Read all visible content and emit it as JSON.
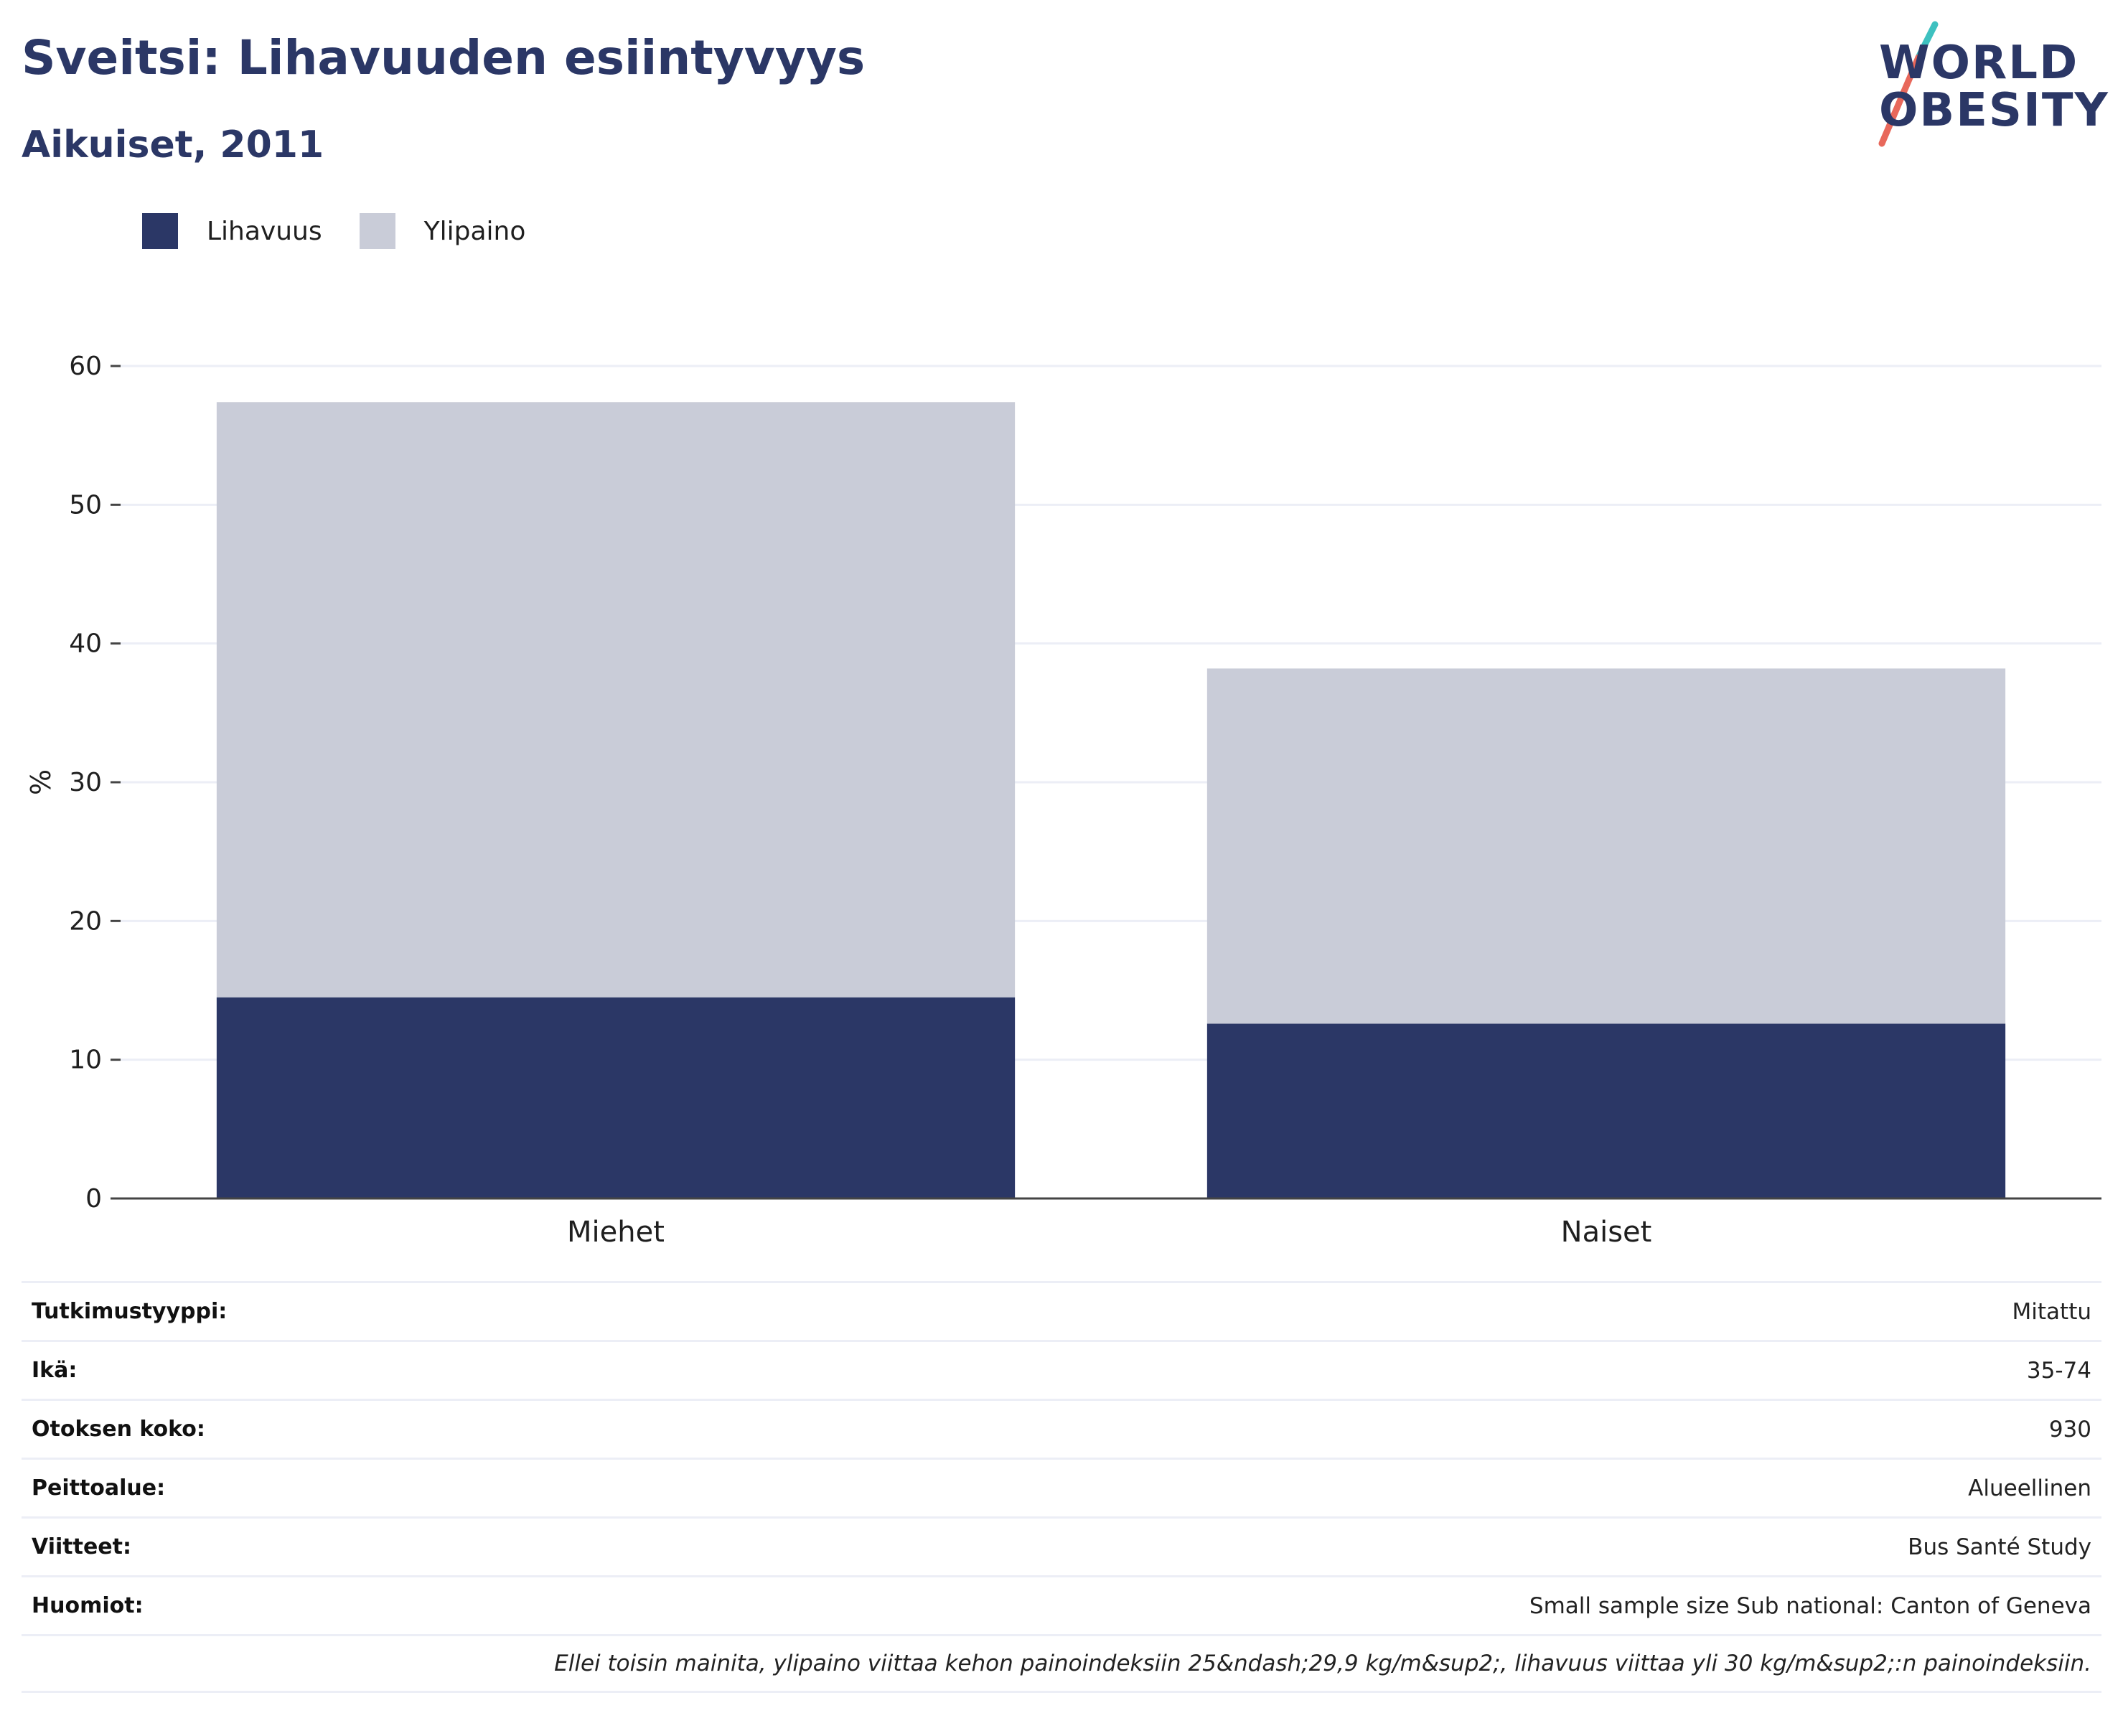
{
  "header": {
    "title": "Sveitsi: Lihavuuden esiintyvyys",
    "subtitle": "Aikuiset, 2011"
  },
  "logo": {
    "line1": "WORLD",
    "line2": "OBESITY",
    "colors": {
      "text": "#2b3766",
      "slash_top": "#3ec1c0",
      "slash_bottom": "#e8685b"
    }
  },
  "legend": [
    {
      "name": "Lihavuus",
      "color": "#2b3766"
    },
    {
      "name": "Ylipaino",
      "color": "#c9ccd8"
    }
  ],
  "chart_data": {
    "type": "bar",
    "stacked": true,
    "categories": [
      "Miehet",
      "Naiset"
    ],
    "series": [
      {
        "name": "Lihavuus",
        "values": [
          14.5,
          12.6
        ],
        "color": "#2b3766"
      },
      {
        "name": "Ylipaino",
        "values": [
          42.9,
          25.6
        ],
        "color": "#c9ccd8"
      }
    ],
    "ylabel": "%",
    "ylim": [
      0,
      60
    ],
    "yticks": [
      0,
      10,
      20,
      30,
      40,
      50,
      60
    ],
    "grid": true,
    "legend_position": "top-left"
  },
  "details": [
    {
      "label": "Tutkimustyyppi:",
      "value": "Mitattu"
    },
    {
      "label": "Ikä:",
      "value": "35-74"
    },
    {
      "label": "Otoksen koko:",
      "value": "930"
    },
    {
      "label": "Peittoalue:",
      "value": "Alueellinen"
    },
    {
      "label": "Viitteet:",
      "value": "Bus Santé Study"
    },
    {
      "label": "Huomiot:",
      "value": "Small sample size Sub national: Canton of Geneva"
    }
  ],
  "footnote": "Ellei toisin mainita, ylipaino viittaa kehon painoindeksiin 25&ndash;29,9 kg/m&sup2;, lihavuus viittaa yli 30 kg/m&sup2;:n painoindeksiin."
}
